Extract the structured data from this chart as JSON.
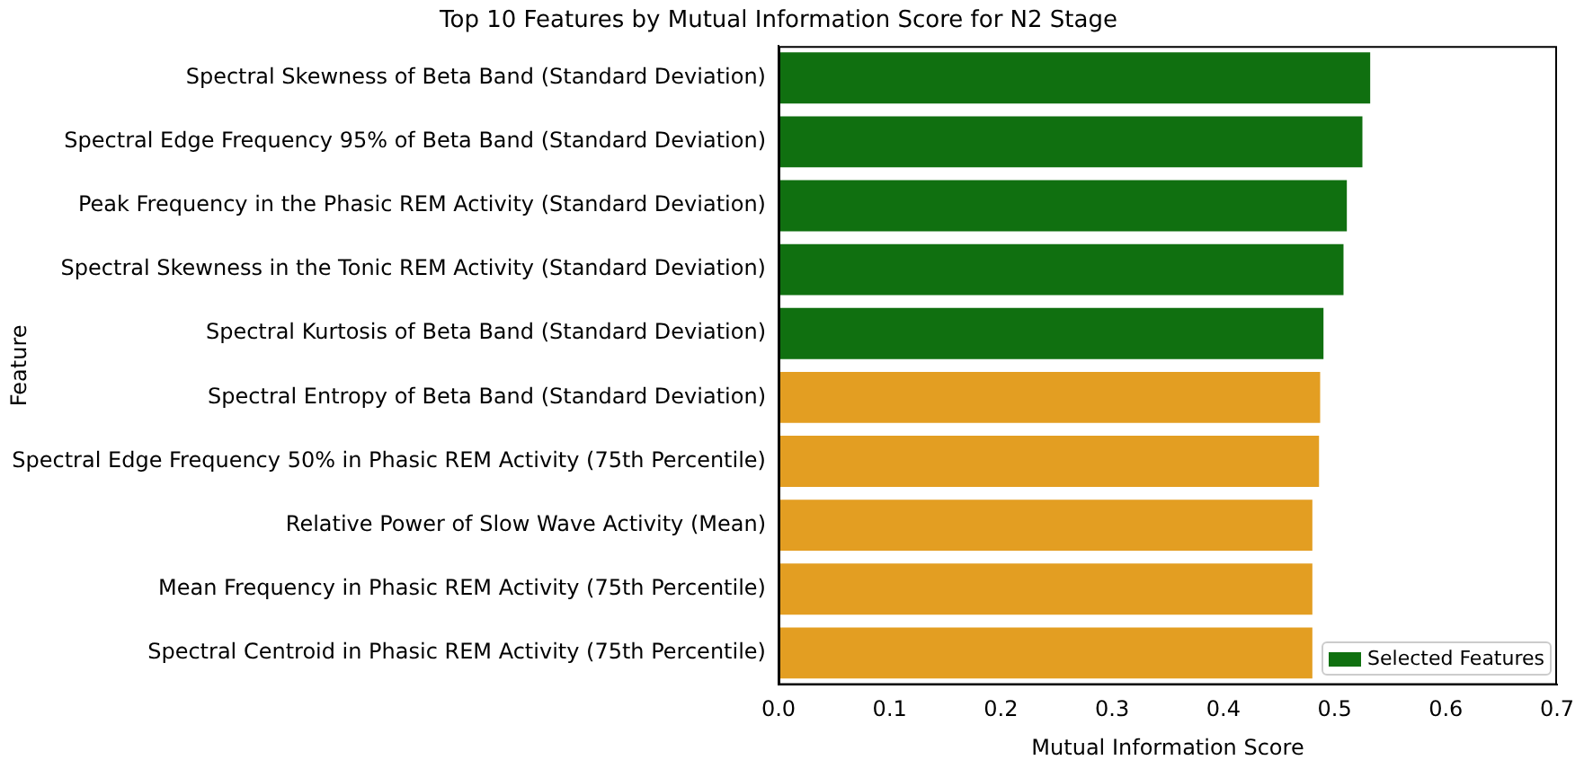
{
  "chart_data": {
    "type": "bar",
    "orientation": "horizontal",
    "title": "Top 10 Features by Mutual Information Score for N2 Stage",
    "xlabel": "Mutual Information Score",
    "ylabel": "Feature",
    "categories": [
      "Spectral Skewness of Beta Band (Standard Deviation)",
      "Spectral Edge Frequency 95% of Beta Band (Standard Deviation)",
      "Peak Frequency in the Phasic REM Activity (Standard Deviation)",
      "Spectral Skewness in the Tonic REM Activity (Standard Deviation)",
      "Spectral Kurtosis of Beta Band (Standard Deviation)",
      "Spectral Entropy of Beta Band (Standard Deviation)",
      "Spectral Edge Frequency 50% in Phasic REM Activity (75th Percentile)",
      "Relative Power of Slow Wave Activity (Mean)",
      "Mean Frequency in Phasic REM Activity (75th Percentile)",
      "Spectral Centroid in Phasic REM Activity (75th Percentile)"
    ],
    "series": [
      {
        "name": "Selected Features",
        "color": "#107010",
        "values": [
          0.532,
          0.525,
          0.511,
          0.508,
          0.49,
          null,
          null,
          null,
          null,
          null
        ]
      },
      {
        "color": "#e39e22",
        "values": [
          null,
          null,
          null,
          null,
          null,
          0.487,
          0.486,
          0.48,
          0.48,
          0.48
        ]
      }
    ],
    "xlim": [
      0,
      0.7
    ],
    "xticks": [
      {
        "value": 0,
        "label": "0.0"
      },
      {
        "value": 0.1,
        "label": "0.1"
      },
      {
        "value": 0.2,
        "label": "0.2"
      },
      {
        "value": 0.3,
        "label": "0.3"
      },
      {
        "value": 0.4,
        "label": "0.4"
      },
      {
        "value": 0.5,
        "label": "0.5"
      },
      {
        "value": 0.6,
        "label": "0.6"
      },
      {
        "value": 0.7,
        "label": "0.7"
      }
    ],
    "grid": false,
    "legend": "bottom right"
  }
}
